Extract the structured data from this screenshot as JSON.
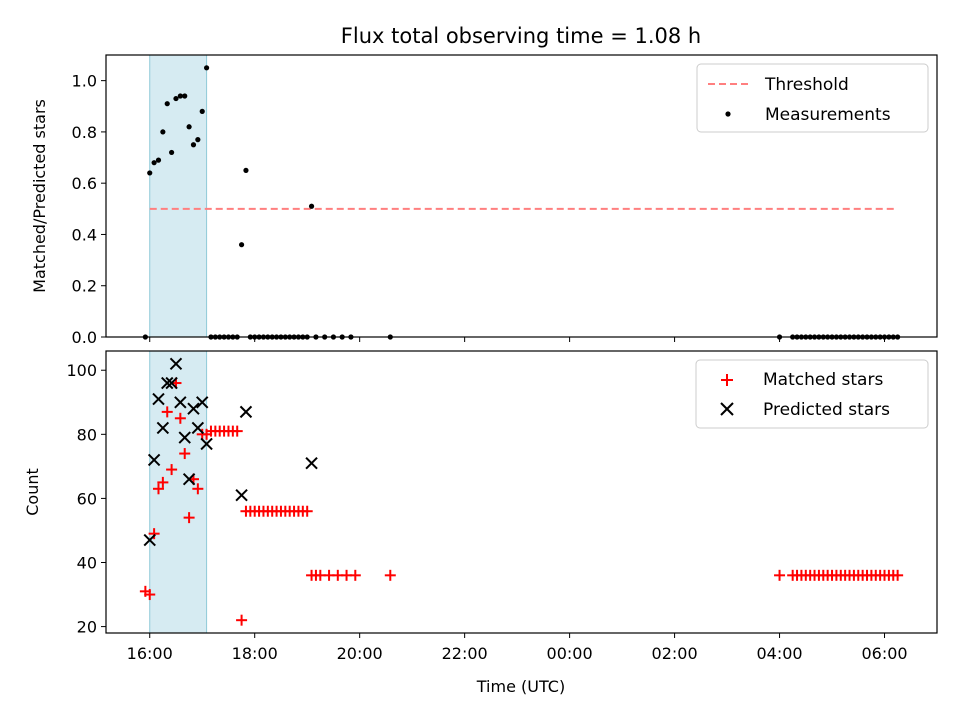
{
  "figure": {
    "title": "Flux total observing time = 1.08 h"
  },
  "chart_data": [
    {
      "type": "scatter",
      "ylabel": "Matched/Predicted stars",
      "xlabel": "",
      "ylim": [
        0,
        1.1
      ],
      "xlim": [
        "15:10",
        "07:00"
      ],
      "x_ticks": [
        "16:00",
        "18:00",
        "20:00",
        "22:00",
        "00:00",
        "02:00",
        "04:00",
        "06:00"
      ],
      "y_ticks": [
        "0.0",
        "0.2",
        "0.4",
        "0.6",
        "0.8",
        "1.0"
      ],
      "legend_position": "top-right",
      "observing_window": [
        "16:00",
        "17:05"
      ],
      "threshold": {
        "name": "Threshold",
        "value": 0.5,
        "x_range": [
          "16:00",
          "06:15"
        ],
        "color": "#ff7f7f"
      },
      "series": [
        {
          "name": "Measurements",
          "color": "#000000",
          "points": [
            [
              "15:55",
              0.0
            ],
            [
              "16:00",
              0.64
            ],
            [
              "16:05",
              0.68
            ],
            [
              "16:10",
              0.69
            ],
            [
              "16:15",
              0.8
            ],
            [
              "16:20",
              0.91
            ],
            [
              "16:25",
              0.72
            ],
            [
              "16:30",
              0.93
            ],
            [
              "16:35",
              0.94
            ],
            [
              "16:40",
              0.94
            ],
            [
              "16:45",
              0.82
            ],
            [
              "16:50",
              0.75
            ],
            [
              "16:55",
              0.77
            ],
            [
              "17:00",
              0.88
            ],
            [
              "17:05",
              1.05
            ],
            [
              "17:10",
              0.0
            ],
            [
              "17:15",
              0.0
            ],
            [
              "17:20",
              0.0
            ],
            [
              "17:25",
              0.0
            ],
            [
              "17:30",
              0.0
            ],
            [
              "17:35",
              0.0
            ],
            [
              "17:40",
              0.0
            ],
            [
              "17:45",
              0.36
            ],
            [
              "17:50",
              0.65
            ],
            [
              "17:55",
              0.0
            ],
            [
              "18:00",
              0.0
            ],
            [
              "18:05",
              0.0
            ],
            [
              "18:10",
              0.0
            ],
            [
              "18:15",
              0.0
            ],
            [
              "18:20",
              0.0
            ],
            [
              "18:25",
              0.0
            ],
            [
              "18:30",
              0.0
            ],
            [
              "18:35",
              0.0
            ],
            [
              "18:40",
              0.0
            ],
            [
              "18:45",
              0.0
            ],
            [
              "18:50",
              0.0
            ],
            [
              "18:55",
              0.0
            ],
            [
              "19:00",
              0.0
            ],
            [
              "19:05",
              0.51
            ],
            [
              "19:10",
              0.0
            ],
            [
              "19:20",
              0.0
            ],
            [
              "19:30",
              0.0
            ],
            [
              "19:40",
              0.0
            ],
            [
              "19:50",
              0.0
            ],
            [
              "20:35",
              0.0
            ],
            [
              "04:00",
              0.0
            ],
            [
              "04:15",
              0.0
            ],
            [
              "04:20",
              0.0
            ],
            [
              "04:25",
              0.0
            ],
            [
              "04:30",
              0.0
            ],
            [
              "04:35",
              0.0
            ],
            [
              "04:40",
              0.0
            ],
            [
              "04:45",
              0.0
            ],
            [
              "04:50",
              0.0
            ],
            [
              "04:55",
              0.0
            ],
            [
              "05:00",
              0.0
            ],
            [
              "05:05",
              0.0
            ],
            [
              "05:10",
              0.0
            ],
            [
              "05:15",
              0.0
            ],
            [
              "05:20",
              0.0
            ],
            [
              "05:25",
              0.0
            ],
            [
              "05:30",
              0.0
            ],
            [
              "05:35",
              0.0
            ],
            [
              "05:40",
              0.0
            ],
            [
              "05:45",
              0.0
            ],
            [
              "05:50",
              0.0
            ],
            [
              "05:55",
              0.0
            ],
            [
              "06:00",
              0.0
            ],
            [
              "06:05",
              0.0
            ],
            [
              "06:10",
              0.0
            ],
            [
              "06:15",
              0.0
            ]
          ]
        }
      ]
    },
    {
      "type": "scatter",
      "ylabel": "Count",
      "xlabel": "Time (UTC)",
      "ylim": [
        18,
        106
      ],
      "xlim": [
        "15:10",
        "07:00"
      ],
      "x_ticks": [
        "16:00",
        "18:00",
        "20:00",
        "22:00",
        "00:00",
        "02:00",
        "04:00",
        "06:00"
      ],
      "y_ticks": [
        "20",
        "40",
        "60",
        "80",
        "100"
      ],
      "legend_position": "top-right",
      "observing_window": [
        "16:00",
        "17:05"
      ],
      "series": [
        {
          "name": "Matched stars",
          "marker": "plus",
          "color": "#ff0000",
          "points": [
            [
              "15:55",
              31
            ],
            [
              "16:00",
              30
            ],
            [
              "16:05",
              49
            ],
            [
              "16:10",
              63
            ],
            [
              "16:15",
              65
            ],
            [
              "16:20",
              87
            ],
            [
              "16:25",
              69
            ],
            [
              "16:30",
              96
            ],
            [
              "16:35",
              85
            ],
            [
              "16:40",
              74
            ],
            [
              "16:45",
              54
            ],
            [
              "16:50",
              66
            ],
            [
              "16:55",
              63
            ],
            [
              "17:00",
              80
            ],
            [
              "17:05",
              80
            ],
            [
              "17:10",
              81
            ],
            [
              "17:15",
              81
            ],
            [
              "17:20",
              81
            ],
            [
              "17:25",
              81
            ],
            [
              "17:30",
              81
            ],
            [
              "17:35",
              81
            ],
            [
              "17:40",
              81
            ],
            [
              "17:45",
              22
            ],
            [
              "17:50",
              56
            ],
            [
              "17:55",
              56
            ],
            [
              "18:00",
              56
            ],
            [
              "18:05",
              56
            ],
            [
              "18:10",
              56
            ],
            [
              "18:15",
              56
            ],
            [
              "18:20",
              56
            ],
            [
              "18:25",
              56
            ],
            [
              "18:30",
              56
            ],
            [
              "18:35",
              56
            ],
            [
              "18:40",
              56
            ],
            [
              "18:45",
              56
            ],
            [
              "18:50",
              56
            ],
            [
              "18:55",
              56
            ],
            [
              "19:00",
              56
            ],
            [
              "19:05",
              36
            ],
            [
              "19:10",
              36
            ],
            [
              "19:15",
              36
            ],
            [
              "19:25",
              36
            ],
            [
              "19:35",
              36
            ],
            [
              "19:45",
              36
            ],
            [
              "19:55",
              36
            ],
            [
              "20:35",
              36
            ],
            [
              "04:00",
              36
            ],
            [
              "04:15",
              36
            ],
            [
              "04:20",
              36
            ],
            [
              "04:25",
              36
            ],
            [
              "04:30",
              36
            ],
            [
              "04:35",
              36
            ],
            [
              "04:40",
              36
            ],
            [
              "04:45",
              36
            ],
            [
              "04:50",
              36
            ],
            [
              "04:55",
              36
            ],
            [
              "05:00",
              36
            ],
            [
              "05:05",
              36
            ],
            [
              "05:10",
              36
            ],
            [
              "05:15",
              36
            ],
            [
              "05:20",
              36
            ],
            [
              "05:25",
              36
            ],
            [
              "05:30",
              36
            ],
            [
              "05:35",
              36
            ],
            [
              "05:40",
              36
            ],
            [
              "05:45",
              36
            ],
            [
              "05:50",
              36
            ],
            [
              "05:55",
              36
            ],
            [
              "06:00",
              36
            ],
            [
              "06:05",
              36
            ],
            [
              "06:10",
              36
            ],
            [
              "06:15",
              36
            ]
          ]
        },
        {
          "name": "Predicted stars",
          "marker": "x",
          "color": "#000000",
          "points": [
            [
              "16:00",
              47
            ],
            [
              "16:05",
              72
            ],
            [
              "16:10",
              91
            ],
            [
              "16:15",
              82
            ],
            [
              "16:20",
              96
            ],
            [
              "16:25",
              96
            ],
            [
              "16:30",
              102
            ],
            [
              "16:35",
              90
            ],
            [
              "16:40",
              79
            ],
            [
              "16:45",
              66
            ],
            [
              "16:50",
              88
            ],
            [
              "16:55",
              82
            ],
            [
              "17:00",
              90
            ],
            [
              "17:05",
              77
            ],
            [
              "17:45",
              61
            ],
            [
              "17:50",
              87
            ],
            [
              "19:05",
              71
            ]
          ]
        }
      ]
    }
  ]
}
